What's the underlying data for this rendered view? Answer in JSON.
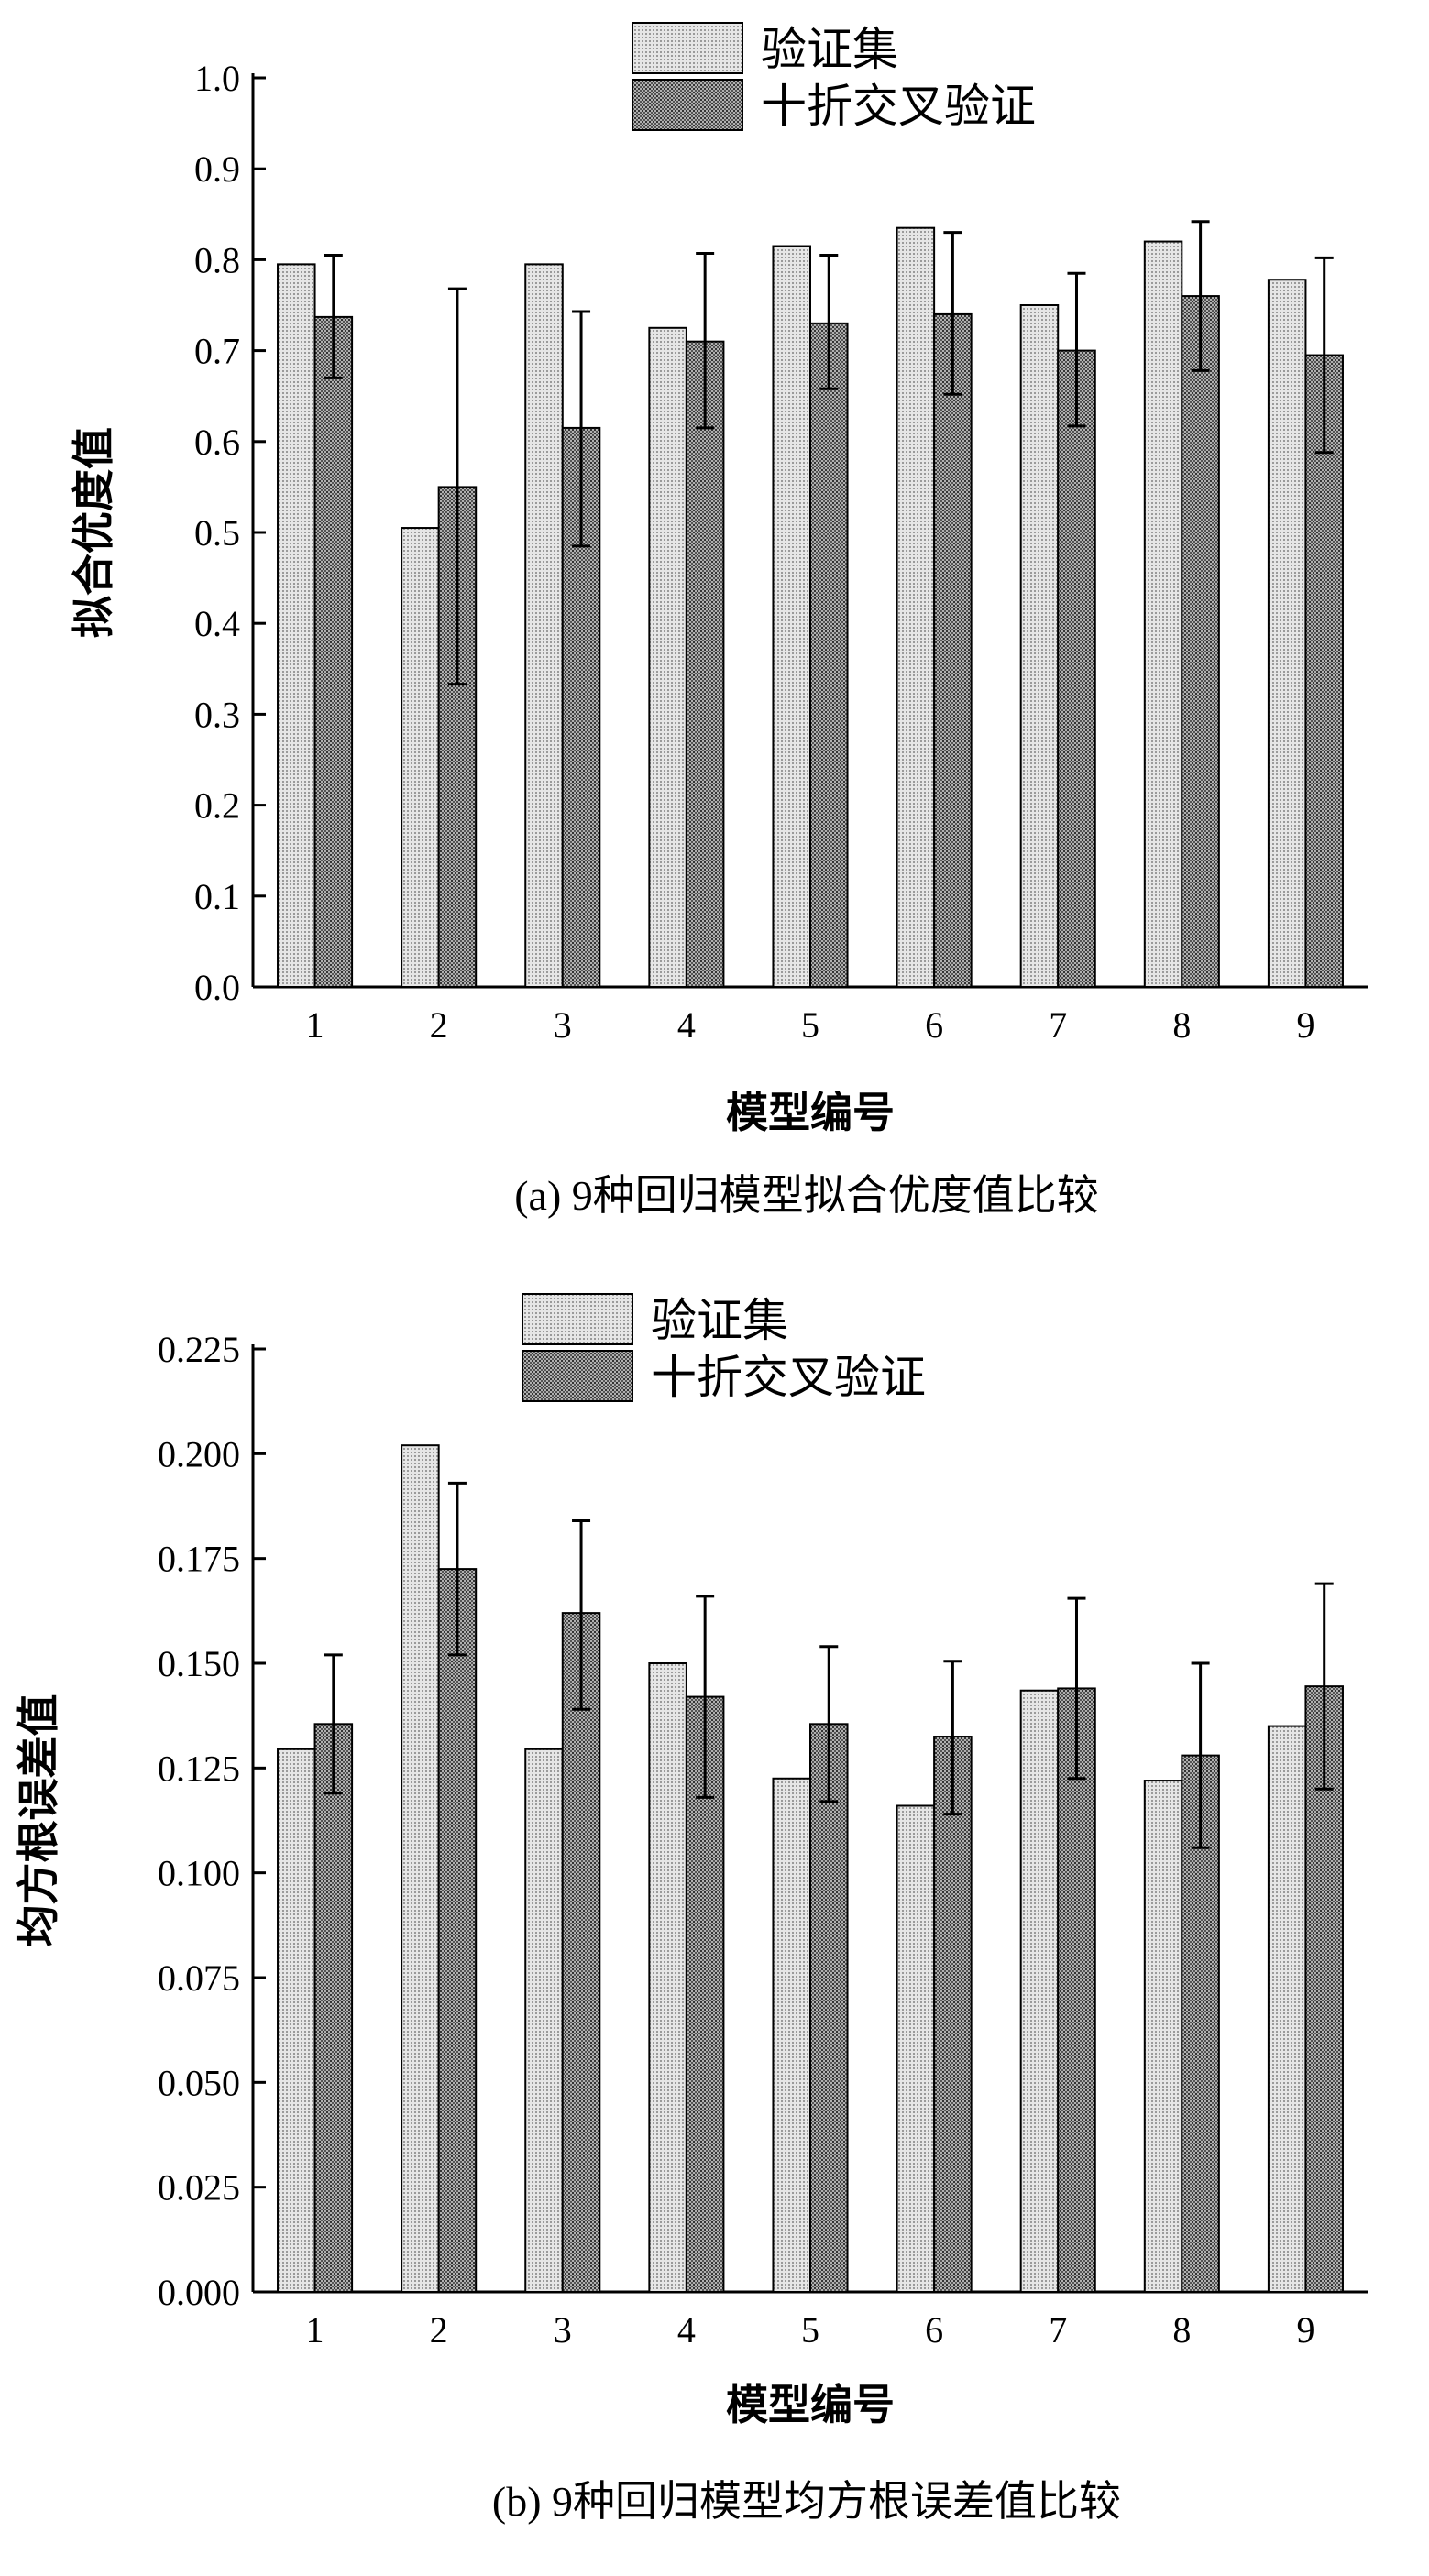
{
  "colors": {
    "validation_fill": "#cfcfcf",
    "cv_fill": "#8a8a8a",
    "axis": "#000000"
  },
  "chart_data": [
    {
      "type": "bar",
      "caption": "(a)  9种回归模型拟合优度值比较",
      "xlabel": "模型编号",
      "ylabel": "拟合优度值",
      "categories": [
        "1",
        "2",
        "3",
        "4",
        "5",
        "6",
        "7",
        "8",
        "9"
      ],
      "ylim": [
        0,
        1.0
      ],
      "yticks": [
        "0.0",
        "0.1",
        "0.2",
        "0.3",
        "0.4",
        "0.5",
        "0.6",
        "0.7",
        "0.8",
        "0.9",
        "1.0"
      ],
      "legend_position": "top-center",
      "grid": false,
      "series": [
        {
          "name": "验证集",
          "values": [
            0.795,
            0.505,
            0.795,
            0.725,
            0.815,
            0.835,
            0.75,
            0.82,
            0.778
          ]
        },
        {
          "name": "十折交叉验证",
          "values": [
            0.737,
            0.55,
            0.615,
            0.71,
            0.73,
            0.74,
            0.7,
            0.76,
            0.695
          ],
          "error_upper": [
            0.805,
            0.768,
            0.743,
            0.807,
            0.805,
            0.83,
            0.785,
            0.842,
            0.802
          ],
          "error_lower": [
            0.67,
            0.333,
            0.485,
            0.615,
            0.658,
            0.652,
            0.617,
            0.678,
            0.588
          ]
        }
      ]
    },
    {
      "type": "bar",
      "caption": "(b) 9种回归模型均方根误差值比较",
      "xlabel": "模型编号",
      "ylabel": "均方根误差值",
      "categories": [
        "1",
        "2",
        "3",
        "4",
        "5",
        "6",
        "7",
        "8",
        "9"
      ],
      "ylim": [
        0,
        0.225
      ],
      "yticks": [
        "0.000",
        "0.025",
        "0.050",
        "0.075",
        "0.100",
        "0.125",
        "0.150",
        "0.175",
        "0.200",
        "0.225"
      ],
      "legend_position": "top-center",
      "grid": false,
      "series": [
        {
          "name": "验证集",
          "values": [
            0.1295,
            0.202,
            0.1295,
            0.15,
            0.1225,
            0.116,
            0.1435,
            0.122,
            0.135
          ]
        },
        {
          "name": "十折交叉验证",
          "values": [
            0.1355,
            0.1725,
            0.162,
            0.142,
            0.1355,
            0.1325,
            0.144,
            0.128,
            0.1445
          ],
          "error_upper": [
            0.152,
            0.193,
            0.184,
            0.166,
            0.154,
            0.1505,
            0.1655,
            0.15,
            0.169
          ],
          "error_lower": [
            0.119,
            0.152,
            0.139,
            0.118,
            0.117,
            0.114,
            0.1225,
            0.106,
            0.12
          ]
        }
      ]
    }
  ]
}
